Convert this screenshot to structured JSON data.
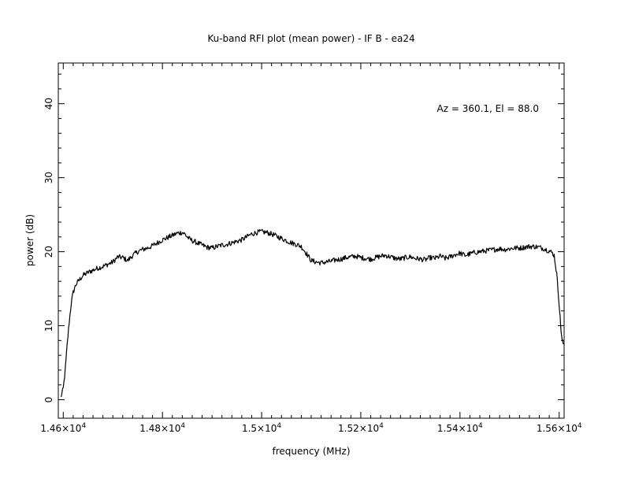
{
  "chart_data": {
    "type": "line",
    "title": "Ku-band RFI plot (mean power) - IF B - ea24",
    "xlabel": "frequency (MHz)",
    "ylabel": "power (dB)",
    "annotation": "Az = 360.1, El = 88.0",
    "xlim": [
      14590,
      15610
    ],
    "ylim": [
      -2.5,
      45.5
    ],
    "x_ticks": [
      {
        "value": 14600,
        "label": "1.46×10^4"
      },
      {
        "value": 14800,
        "label": "1.48×10^4"
      },
      {
        "value": 15000,
        "label": "1.5×10^4"
      },
      {
        "value": 15200,
        "label": "1.52×10^4"
      },
      {
        "value": 15400,
        "label": "1.54×10^4"
      },
      {
        "value": 15600,
        "label": "1.56×10^4"
      }
    ],
    "y_ticks": [
      {
        "value": 0,
        "label": "0"
      },
      {
        "value": 10,
        "label": "10"
      },
      {
        "value": 20,
        "label": "20"
      },
      {
        "value": 30,
        "label": "30"
      },
      {
        "value": 40,
        "label": "40"
      }
    ],
    "grid": false,
    "series": [
      {
        "color": "#000000",
        "x": [
          14595,
          14600,
          14604,
          14608,
          14612,
          14616,
          14620,
          14625,
          14630,
          14640,
          14650,
          14660,
          14670,
          14680,
          14690,
          14700,
          14710,
          14720,
          14730,
          14740,
          14750,
          14760,
          14770,
          14780,
          14790,
          14800,
          14810,
          14820,
          14830,
          14840,
          14845,
          14850,
          14855,
          14860,
          14870,
          14880,
          14890,
          14900,
          14910,
          14920,
          14930,
          14940,
          14950,
          14960,
          14970,
          14980,
          14990,
          15000,
          15010,
          15020,
          15030,
          15040,
          15050,
          15060,
          15070,
          15080,
          15090,
          15100,
          15110,
          15120,
          15130,
          15140,
          15150,
          15160,
          15170,
          15180,
          15190,
          15200,
          15210,
          15220,
          15230,
          15240,
          15250,
          15260,
          15270,
          15280,
          15290,
          15300,
          15310,
          15320,
          15330,
          15340,
          15350,
          15360,
          15370,
          15380,
          15390,
          15400,
          15410,
          15420,
          15430,
          15440,
          15450,
          15460,
          15470,
          15480,
          15490,
          15500,
          15510,
          15520,
          15530,
          15540,
          15550,
          15560,
          15570,
          15580,
          15585,
          15590,
          15595,
          15600,
          15603,
          15606,
          15609
        ],
        "y": [
          0.3,
          1.5,
          4,
          7.5,
          10.5,
          13,
          14.5,
          15.5,
          16,
          16.8,
          17.2,
          17.5,
          17.8,
          18,
          18.3,
          18.6,
          19.3,
          19.2,
          18.8,
          19.5,
          20,
          20.3,
          20.5,
          20.8,
          21.2,
          21.6,
          21.9,
          22.2,
          22.5,
          22.6,
          22.4,
          22,
          21.7,
          21.5,
          21.2,
          20.9,
          20.6,
          20.5,
          20.7,
          20.9,
          21,
          21.2,
          21.4,
          21.6,
          22,
          22.4,
          22.6,
          22.7,
          22.6,
          22.4,
          22.1,
          21.8,
          21.5,
          21.2,
          21,
          20.7,
          19.8,
          18.8,
          18.6,
          18.5,
          18.6,
          18.7,
          18.9,
          19,
          19.2,
          19.3,
          19.4,
          19.2,
          19.1,
          19,
          19.2,
          19.4,
          19.5,
          19.3,
          19.1,
          19,
          19.2,
          19.3,
          19.1,
          19,
          18.9,
          19.2,
          19.1,
          19.4,
          19.1,
          19.3,
          19.6,
          19.8,
          19.5,
          19.7,
          19.9,
          20,
          20.1,
          20.2,
          20.3,
          20.4,
          20.3,
          20.4,
          20.5,
          20.5,
          20.6,
          20.7,
          20.7,
          20.6,
          20.4,
          20.1,
          19.9,
          19.5,
          17,
          13,
          10,
          8,
          7.5
        ]
      }
    ]
  }
}
